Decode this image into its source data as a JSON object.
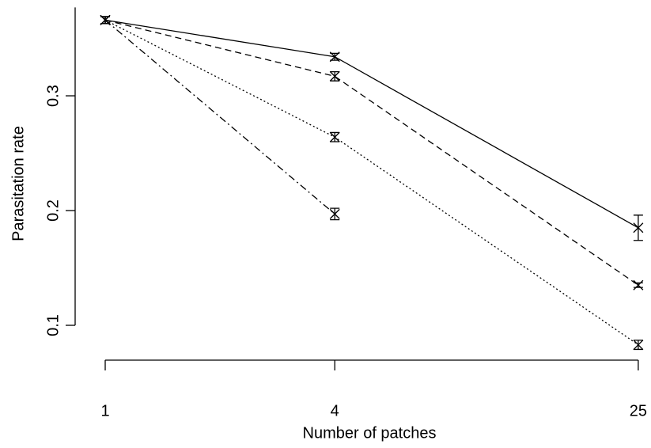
{
  "chart_data": {
    "type": "line",
    "xlabel": "Number of patches",
    "ylabel": "Parasitation rate",
    "x": [
      1,
      4,
      25
    ],
    "xscale": "log",
    "xlim": [
      0.83,
      27
    ],
    "xticks": [
      1,
      4,
      25
    ],
    "ylim": [
      0.07,
      0.377
    ],
    "yticks": [
      0.1,
      0.2,
      0.3
    ],
    "series": [
      {
        "linestyle": "solid",
        "color": "#000000",
        "values": [
          0.366,
          0.334,
          0.185
        ],
        "errors": [
          0.003,
          0.003,
          0.011
        ]
      },
      {
        "linestyle": "dashed",
        "color": "#000000",
        "values": [
          0.366,
          0.317,
          0.135
        ],
        "errors": [
          0.003,
          0.004,
          0.002
        ]
      },
      {
        "linestyle": "dotted",
        "color": "#000000",
        "values": [
          0.366,
          0.264,
          0.083
        ],
        "errors": [
          0.003,
          0.004,
          0.004
        ]
      },
      {
        "linestyle": "dashdot",
        "color": "#000000",
        "values": [
          0.366,
          0.197,
          null
        ],
        "errors": [
          0.003,
          0.005,
          null
        ]
      }
    ]
  }
}
